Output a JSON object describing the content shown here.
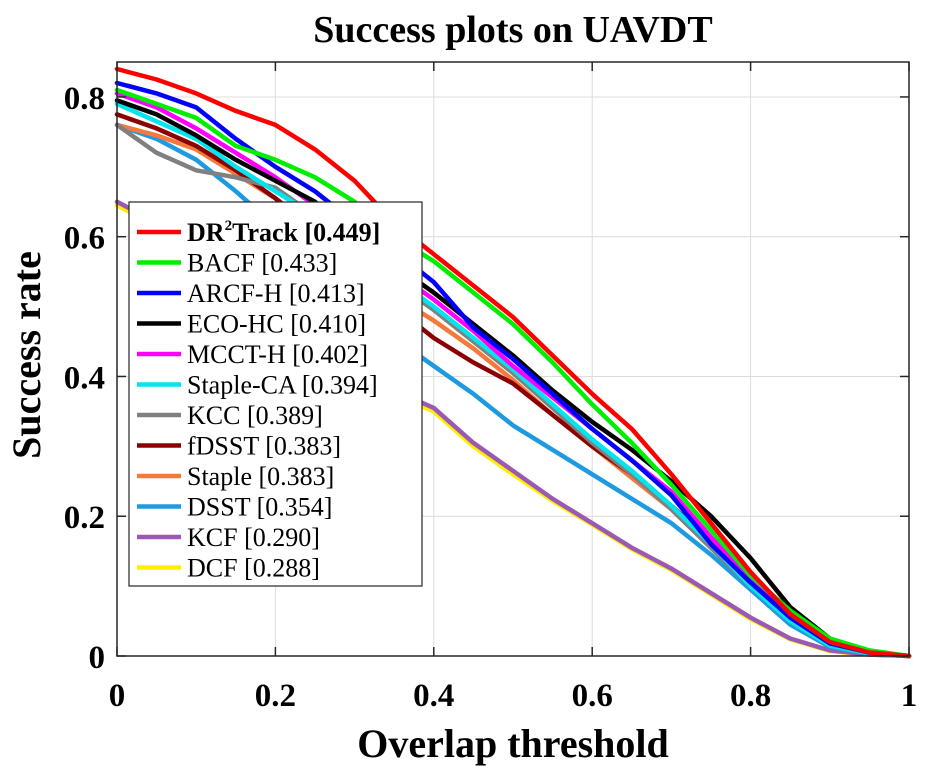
{
  "chart_data": {
    "type": "line",
    "title": "Success plots on UAVDT",
    "xlabel": "Overlap threshold",
    "ylabel": "Success rate",
    "xlim": [
      0,
      1
    ],
    "ylim": [
      0,
      0.85
    ],
    "xticks": [
      "0",
      "0.2",
      "0.4",
      "0.6",
      "0.8",
      "1"
    ],
    "yticks": [
      "0",
      "0.2",
      "0.4",
      "0.6",
      "0.8"
    ],
    "xtick_values": [
      0,
      0.2,
      0.4,
      0.6,
      0.8,
      1
    ],
    "ytick_values": [
      0,
      0.2,
      0.4,
      0.6,
      0.8
    ],
    "grid": true,
    "legend_position": "left-middle",
    "series": [
      {
        "name": "DR",
        "name_sup": "2",
        "name_rest": "Track [0.449]",
        "bold": true,
        "color": "#ff0000",
        "x": [
          0,
          0.05,
          0.1,
          0.15,
          0.2,
          0.25,
          0.3,
          0.35,
          0.4,
          0.45,
          0.5,
          0.55,
          0.6,
          0.65,
          0.7,
          0.75,
          0.8,
          0.85,
          0.9,
          0.95,
          1
        ],
        "y": [
          0.84,
          0.825,
          0.805,
          0.78,
          0.76,
          0.725,
          0.68,
          0.62,
          0.575,
          0.53,
          0.485,
          0.43,
          0.375,
          0.325,
          0.26,
          0.19,
          0.12,
          0.06,
          0.02,
          0.005,
          0
        ]
      },
      {
        "name": "BACF [0.433]",
        "color": "#00ee00",
        "x": [
          0,
          0.05,
          0.1,
          0.15,
          0.2,
          0.25,
          0.3,
          0.35,
          0.4,
          0.45,
          0.5,
          0.55,
          0.6,
          0.65,
          0.7,
          0.75,
          0.8,
          0.85,
          0.9,
          0.95,
          1
        ],
        "y": [
          0.81,
          0.79,
          0.77,
          0.73,
          0.71,
          0.685,
          0.65,
          0.6,
          0.565,
          0.52,
          0.475,
          0.42,
          0.36,
          0.305,
          0.245,
          0.18,
          0.115,
          0.065,
          0.025,
          0.008,
          0
        ]
      },
      {
        "name": "ARCF-H [0.413]",
        "color": "#0000ff",
        "x": [
          0,
          0.05,
          0.1,
          0.15,
          0.2,
          0.25,
          0.3,
          0.35,
          0.4,
          0.45,
          0.5,
          0.55,
          0.6,
          0.65,
          0.7,
          0.75,
          0.8,
          0.85,
          0.9,
          0.95,
          1
        ],
        "y": [
          0.82,
          0.805,
          0.785,
          0.74,
          0.7,
          0.665,
          0.62,
          0.58,
          0.535,
          0.47,
          0.425,
          0.375,
          0.325,
          0.28,
          0.23,
          0.16,
          0.105,
          0.055,
          0.018,
          0.005,
          0
        ]
      },
      {
        "name": "ECO-HC [0.410]",
        "color": "#000000",
        "x": [
          0,
          0.05,
          0.1,
          0.15,
          0.2,
          0.25,
          0.3,
          0.35,
          0.4,
          0.45,
          0.5,
          0.55,
          0.6,
          0.65,
          0.7,
          0.75,
          0.8,
          0.85,
          0.9,
          0.95,
          1
        ],
        "y": [
          0.795,
          0.775,
          0.745,
          0.71,
          0.68,
          0.65,
          0.6,
          0.56,
          0.52,
          0.475,
          0.43,
          0.38,
          0.335,
          0.295,
          0.25,
          0.2,
          0.14,
          0.07,
          0.025,
          0.006,
          0
        ]
      },
      {
        "name": "MCCT-H [0.402]",
        "color": "#ff00ff",
        "x": [
          0,
          0.05,
          0.1,
          0.15,
          0.2,
          0.25,
          0.3,
          0.35,
          0.4,
          0.45,
          0.5,
          0.55,
          0.6,
          0.65,
          0.7,
          0.75,
          0.8,
          0.85,
          0.9,
          0.95,
          1
        ],
        "y": [
          0.805,
          0.785,
          0.755,
          0.72,
          0.685,
          0.645,
          0.595,
          0.55,
          0.51,
          0.465,
          0.415,
          0.37,
          0.325,
          0.28,
          0.235,
          0.17,
          0.11,
          0.06,
          0.02,
          0.005,
          0
        ]
      },
      {
        "name": "Staple-CA [0.394]",
        "color": "#00e5ee",
        "x": [
          0,
          0.05,
          0.1,
          0.15,
          0.2,
          0.25,
          0.3,
          0.35,
          0.4,
          0.45,
          0.5,
          0.55,
          0.6,
          0.65,
          0.7,
          0.75,
          0.8,
          0.85,
          0.9,
          0.95,
          1
        ],
        "y": [
          0.79,
          0.765,
          0.74,
          0.7,
          0.665,
          0.63,
          0.585,
          0.54,
          0.5,
          0.455,
          0.41,
          0.36,
          0.31,
          0.265,
          0.215,
          0.16,
          0.1,
          0.05,
          0.015,
          0.004,
          0
        ]
      },
      {
        "name": "KCC [0.389]",
        "color": "#808080",
        "x": [
          0,
          0.05,
          0.1,
          0.15,
          0.2,
          0.25,
          0.3,
          0.35,
          0.4,
          0.45,
          0.5,
          0.55,
          0.6,
          0.65,
          0.7,
          0.75,
          0.8,
          0.85,
          0.9,
          0.95,
          1
        ],
        "y": [
          0.76,
          0.72,
          0.695,
          0.685,
          0.67,
          0.63,
          0.58,
          0.535,
          0.495,
          0.45,
          0.405,
          0.355,
          0.305,
          0.26,
          0.21,
          0.155,
          0.1,
          0.05,
          0.015,
          0.004,
          0
        ]
      },
      {
        "name": "fDSST [0.383]",
        "color": "#8b0000",
        "x": [
          0,
          0.05,
          0.1,
          0.15,
          0.2,
          0.25,
          0.3,
          0.35,
          0.4,
          0.45,
          0.5,
          0.55,
          0.6,
          0.65,
          0.7,
          0.75,
          0.8,
          0.85,
          0.9,
          0.95,
          1
        ],
        "y": [
          0.775,
          0.755,
          0.73,
          0.695,
          0.655,
          0.61,
          0.555,
          0.5,
          0.455,
          0.42,
          0.39,
          0.345,
          0.3,
          0.26,
          0.215,
          0.165,
          0.11,
          0.055,
          0.018,
          0.005,
          0
        ]
      },
      {
        "name": "Staple [0.383]",
        "color": "#f4793b",
        "x": [
          0,
          0.05,
          0.1,
          0.15,
          0.2,
          0.25,
          0.3,
          0.35,
          0.4,
          0.45,
          0.5,
          0.55,
          0.6,
          0.65,
          0.7,
          0.75,
          0.8,
          0.85,
          0.9,
          0.95,
          1
        ],
        "y": [
          0.76,
          0.745,
          0.725,
          0.69,
          0.655,
          0.61,
          0.56,
          0.515,
          0.48,
          0.44,
          0.395,
          0.345,
          0.3,
          0.255,
          0.21,
          0.155,
          0.1,
          0.05,
          0.015,
          0.004,
          0
        ]
      },
      {
        "name": "DSST [0.354]",
        "color": "#1e9be0",
        "x": [
          0,
          0.05,
          0.1,
          0.15,
          0.2,
          0.25,
          0.3,
          0.35,
          0.4,
          0.45,
          0.5,
          0.55,
          0.6,
          0.65,
          0.7,
          0.75,
          0.8,
          0.85,
          0.9,
          0.95,
          1
        ],
        "y": [
          0.76,
          0.74,
          0.71,
          0.665,
          0.615,
          0.56,
          0.5,
          0.455,
          0.415,
          0.375,
          0.33,
          0.295,
          0.26,
          0.225,
          0.19,
          0.145,
          0.095,
          0.045,
          0.013,
          0.003,
          0
        ]
      },
      {
        "name": "KCF [0.290]",
        "color": "#9b59b6",
        "x": [
          0,
          0.05,
          0.1,
          0.15,
          0.2,
          0.25,
          0.3,
          0.35,
          0.4,
          0.45,
          0.5,
          0.55,
          0.6,
          0.65,
          0.7,
          0.75,
          0.8,
          0.85,
          0.9,
          0.95,
          1
        ],
        "y": [
          0.65,
          0.62,
          0.585,
          0.545,
          0.5,
          0.455,
          0.41,
          0.38,
          0.355,
          0.305,
          0.265,
          0.225,
          0.19,
          0.155,
          0.125,
          0.09,
          0.055,
          0.025,
          0.008,
          0.002,
          0
        ]
      },
      {
        "name": "DCF [0.288]",
        "color": "#ffee00",
        "x": [
          0,
          0.05,
          0.1,
          0.15,
          0.2,
          0.25,
          0.3,
          0.35,
          0.4,
          0.45,
          0.5,
          0.55,
          0.6,
          0.65,
          0.7,
          0.75,
          0.8,
          0.85,
          0.9,
          0.95,
          1
        ],
        "y": [
          0.645,
          0.615,
          0.58,
          0.54,
          0.495,
          0.45,
          0.405,
          0.375,
          0.35,
          0.3,
          0.26,
          0.222,
          0.188,
          0.153,
          0.123,
          0.088,
          0.053,
          0.024,
          0.007,
          0.002,
          0
        ]
      }
    ]
  }
}
